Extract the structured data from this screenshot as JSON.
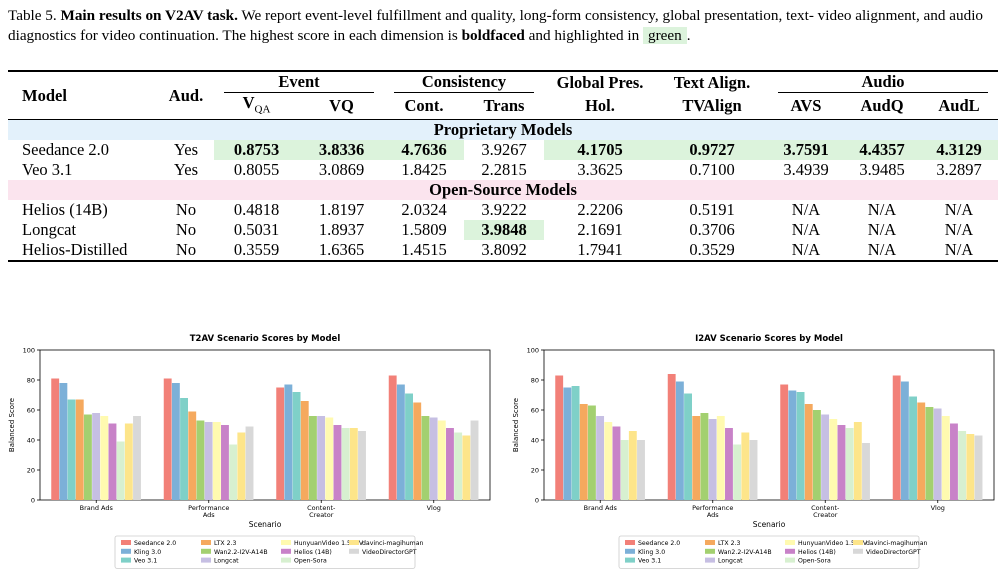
{
  "caption": {
    "label": "Table 5.",
    "bold_title": "Main results on V2AV task.",
    "text1": " We report event-level fulfillment and quality, long-form consistency, global presentation, text- video alignment, and audio diagnostics for video continuation. The highest score in each dimension is ",
    "boldfaced": "boldfaced",
    "text2": " and highlighted in ",
    "green": "green",
    "text3": "."
  },
  "table": {
    "headers": {
      "model": "Model",
      "aud": "Aud.",
      "event": "Event",
      "consistency": "Consistency",
      "global": "Global Pres.",
      "text_align": "Text Align.",
      "audio": "Audio",
      "vqa": "V",
      "vqa_sub": "QA",
      "vq": "VQ",
      "cont": "Cont.",
      "trans": "Trans",
      "hol": "Hol.",
      "tvalign": "TVAlign",
      "avs": "AVS",
      "audq": "AudQ",
      "audl": "AudL"
    },
    "section_proprietary": "Proprietary Models",
    "section_open": "Open-Source Models",
    "rows": [
      {
        "model": "Seedance 2.0",
        "aud": "Yes",
        "vqa": "0.8753",
        "vq": "3.8336",
        "cont": "4.7636",
        "trans": "3.9267",
        "hol": "4.1705",
        "tvalign": "0.9727",
        "avs": "3.7591",
        "audq": "4.4357",
        "audl": "4.3129"
      },
      {
        "model": "Veo 3.1",
        "aud": "Yes",
        "vqa": "0.8055",
        "vq": "3.0869",
        "cont": "1.8425",
        "trans": "2.2815",
        "hol": "3.3625",
        "tvalign": "0.7100",
        "avs": "3.4939",
        "audq": "3.9485",
        "audl": "3.2897"
      },
      {
        "model": "Helios (14B)",
        "aud": "No",
        "vqa": "0.4818",
        "vq": "1.8197",
        "cont": "2.0324",
        "trans": "3.9222",
        "hol": "2.2206",
        "tvalign": "0.5191",
        "avs": "N/A",
        "audq": "N/A",
        "audl": "N/A"
      },
      {
        "model": "Longcat",
        "aud": "No",
        "vqa": "0.5031",
        "vq": "1.8937",
        "cont": "1.5809",
        "trans": "3.9848",
        "hol": "2.1691",
        "tvalign": "0.3706",
        "avs": "N/A",
        "audq": "N/A",
        "audl": "N/A"
      },
      {
        "model": "Helios-Distilled",
        "aud": "No",
        "vqa": "0.3559",
        "vq": "1.6365",
        "cont": "1.4515",
        "trans": "3.8092",
        "hol": "1.7941",
        "tvalign": "0.3529",
        "avs": "N/A",
        "audq": "N/A",
        "audl": "N/A"
      }
    ]
  },
  "chart_data": [
    {
      "type": "bar",
      "title": "T2AV Scenario Scores by Model",
      "xlabel": "Scenario",
      "ylabel": "Balanced Score",
      "ylim": [
        0,
        100
      ],
      "yticks": [
        "0",
        "20",
        "40",
        "60",
        "80",
        "100"
      ],
      "categories": [
        "Brand Ads",
        "Performance\nAds",
        "Content-\nCreator",
        "Vlog"
      ],
      "legend_position": "bottom-center",
      "series": [
        {
          "name": "Seedance 2.0",
          "color": "#f28078",
          "values": [
            81,
            81,
            75,
            83
          ]
        },
        {
          "name": "Kling 3.0",
          "color": "#7cb0d8",
          "values": [
            78,
            78,
            77,
            77
          ]
        },
        {
          "name": "Veo 3.1",
          "color": "#7fd0c8",
          "values": [
            67,
            68,
            72,
            71
          ]
        },
        {
          "name": "LTX 2.3",
          "color": "#f5a95e",
          "values": [
            67,
            59,
            66,
            65
          ]
        },
        {
          "name": "Wan2.2-I2V-A14B",
          "color": "#a3d070",
          "values": [
            57,
            53,
            56,
            56
          ]
        },
        {
          "name": "Longcat",
          "color": "#c6bfe3",
          "values": [
            58,
            52,
            56,
            55
          ]
        },
        {
          "name": "HunyuanVideo 1.5-I2V",
          "color": "#fffab0",
          "values": [
            56,
            52,
            55,
            53
          ]
        },
        {
          "name": "Helios (14B)",
          "color": "#c882c8",
          "values": [
            51,
            50,
            50,
            48
          ]
        },
        {
          "name": "Open-Sora",
          "color": "#d7f0d0",
          "values": [
            39,
            37,
            48,
            45
          ]
        },
        {
          "name": "davinci-magihuman",
          "color": "#fde58a",
          "values": [
            51,
            45,
            48,
            43
          ]
        },
        {
          "name": "VideoDirectorGPT",
          "color": "#d8d8d8",
          "values": [
            56,
            49,
            46,
            53
          ]
        }
      ]
    },
    {
      "type": "bar",
      "title": "I2AV Scenario Scores by Model",
      "xlabel": "Scenario",
      "ylabel": "Balanced Score",
      "ylim": [
        0,
        100
      ],
      "yticks": [
        "0",
        "20",
        "40",
        "60",
        "80",
        "100"
      ],
      "categories": [
        "Brand Ads",
        "Performance\nAds",
        "Content-\nCreator",
        "Vlog"
      ],
      "legend_position": "bottom-center",
      "series": [
        {
          "name": "Seedance 2.0",
          "color": "#f28078",
          "values": [
            83,
            84,
            77,
            83
          ]
        },
        {
          "name": "Kling 3.0",
          "color": "#7cb0d8",
          "values": [
            75,
            79,
            73,
            79
          ]
        },
        {
          "name": "Veo 3.1",
          "color": "#7fd0c8",
          "values": [
            76,
            71,
            72,
            69
          ]
        },
        {
          "name": "LTX 2.3",
          "color": "#f5a95e",
          "values": [
            64,
            56,
            64,
            65
          ]
        },
        {
          "name": "Wan2.2-I2V-A14B",
          "color": "#a3d070",
          "values": [
            63,
            58,
            60,
            62
          ]
        },
        {
          "name": "Longcat",
          "color": "#c6bfe3",
          "values": [
            56,
            54,
            57,
            61
          ]
        },
        {
          "name": "HunyuanVideo 1.5-I2V",
          "color": "#fffab0",
          "values": [
            52,
            56,
            54,
            56
          ]
        },
        {
          "name": "Helios (14B)",
          "color": "#c882c8",
          "values": [
            49,
            48,
            50,
            51
          ]
        },
        {
          "name": "Open-Sora",
          "color": "#d7f0d0",
          "values": [
            40,
            37,
            48,
            46
          ]
        },
        {
          "name": "davinci-magihuman",
          "color": "#fde58a",
          "values": [
            46,
            45,
            52,
            44
          ]
        },
        {
          "name": "VideoDirectorGPT",
          "color": "#d8d8d8",
          "values": [
            40,
            40,
            38,
            43
          ]
        }
      ]
    }
  ]
}
